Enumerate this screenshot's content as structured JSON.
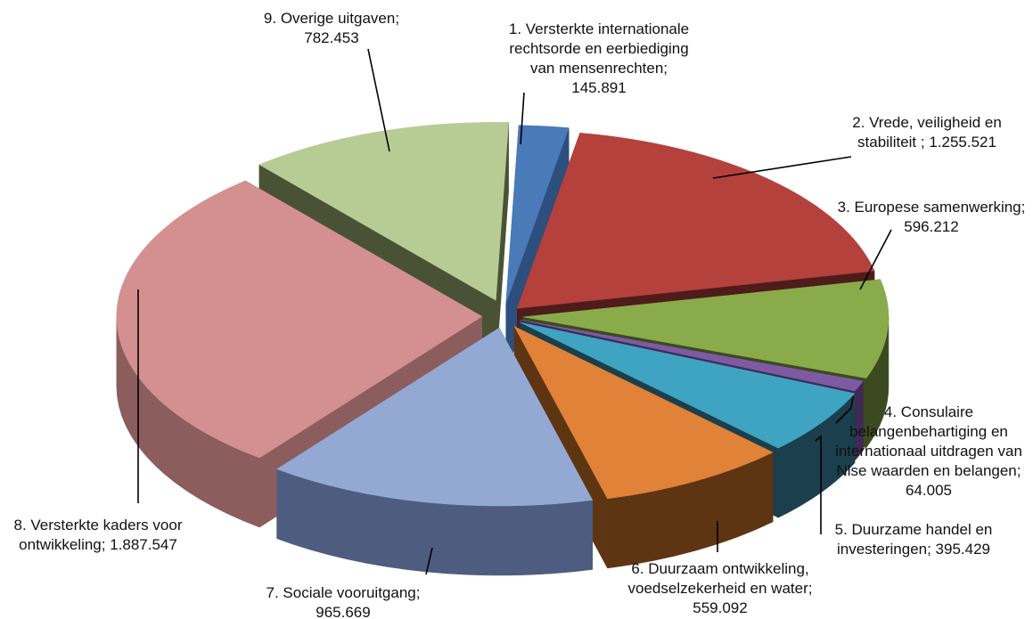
{
  "chart_data": {
    "type": "pie",
    "title": "",
    "style": "3d-exploded",
    "categories": [
      "1. Versterkte internationale rechtsorde en eerbiediging van mensenrechten",
      "2. Vrede, veiligheid en stabiliteit",
      "3. Europese samenwerking",
      "4. Consulaire belangenbehartiging en internationaal uitdragen van Nlse waarden en belangen",
      "5. Duurzame handel en investeringen",
      "6. Duurzaam ontwikkeling, voedselzekerheid en water",
      "7. Sociale vooruitgang",
      "8. Versterkte kaders voor ontwikkeling",
      "9. Overige uitgaven"
    ],
    "values": [
      145891,
      1255521,
      596212,
      64005,
      395429,
      559092,
      965669,
      1887547,
      782453
    ],
    "value_labels": [
      "145.891",
      "1.255.521",
      "596.212",
      "64.005",
      "395.429",
      "559.092",
      "965.669",
      "1.887.547",
      "782.453"
    ],
    "colors": [
      "#4a7ab8",
      "#b5413d",
      "#8aab4a",
      "#7e5aa3",
      "#3fa3c2",
      "#e08238",
      "#93a9d4",
      "#d49090",
      "#b7cc94"
    ],
    "side_colors": [
      "#2d4f7d",
      "#4e1c1a",
      "#3b4a20",
      "#3e2a55",
      "#1b3f4c",
      "#5e3512",
      "#4e5d7f",
      "#8c5d5d",
      "#4a5235"
    ],
    "labels": [
      [
        "1. Versterkte internationale",
        "rechtsorde en eerbiediging",
        "van mensenrechten;",
        "145.891"
      ],
      [
        "2. Vrede, veiligheid en",
        "stabiliteit ; 1.255.521"
      ],
      [
        "3. Europese samenwerking;",
        "596.212"
      ],
      [
        "4. Consulaire",
        "belangenbehartiging en",
        "internationaal uitdragen van",
        "Nlse waarden en belangen;",
        "64.005"
      ],
      [
        "5. Duurzame handel en",
        "investeringen; 395.429"
      ],
      [
        "6. Duurzaam ontwikkeling,",
        "voedselzekerheid en water;",
        "559.092"
      ],
      [
        "7. Sociale vooruitgang;",
        "965.669"
      ],
      [
        "8. Versterkte kaders voor",
        "ontwikkeling; 1.887.547"
      ],
      [
        "9. Overige uitgaven;",
        "782.453"
      ]
    ],
    "legend": "none"
  }
}
